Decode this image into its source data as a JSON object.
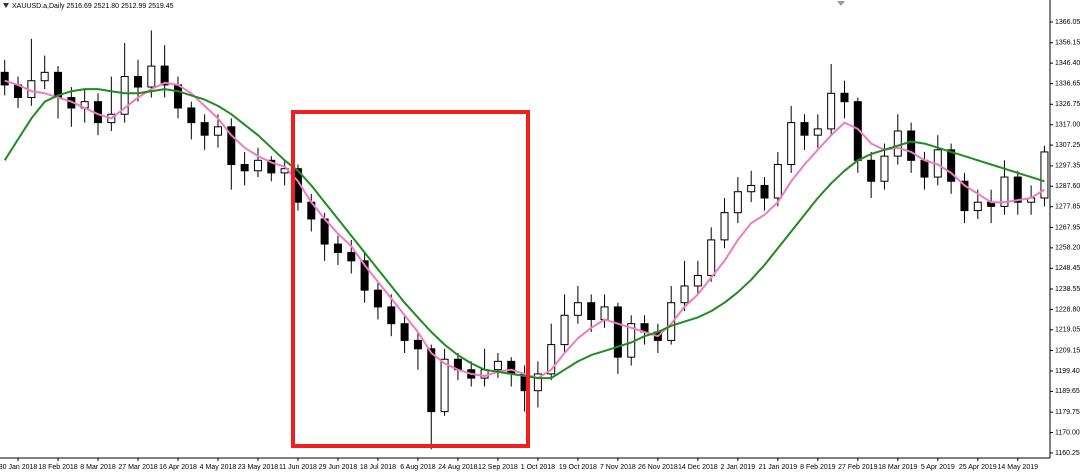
{
  "chart_data": {
    "type": "candlestick",
    "title": "XAUUSD.a,Daily  2516.69 2521.80 2512.99 2519.45",
    "categories": [
      null,
      "30 Jan 2018",
      null,
      null,
      "18 Feb 2018",
      null,
      null,
      "8 Mar 2018",
      null,
      null,
      "27 Mar 2018",
      null,
      null,
      "16 Apr 2018",
      null,
      null,
      "4 May 2018",
      null,
      null,
      "23 May 2018",
      null,
      null,
      "11 Jun 2018",
      null,
      null,
      "29 Jun 2018",
      null,
      null,
      "18 Jul 2018",
      null,
      null,
      "6 Aug 2018",
      null,
      null,
      "24 Aug 2018",
      null,
      null,
      "12 Sep 2018",
      null,
      null,
      "1 Oct 2018",
      null,
      null,
      "19 Oct 2018",
      null,
      null,
      "7 Nov 2018",
      null,
      null,
      "26 Nov 2018",
      null,
      null,
      "14 Dec 2018",
      null,
      null,
      "2 Jan 2019",
      null,
      null,
      "21 Jan 2019",
      null,
      null,
      "8 Feb 2019",
      null,
      null,
      "27 Feb 2019",
      null,
      null,
      "18 Mar 2019",
      null,
      null,
      "5 Apr 2019",
      null,
      null,
      "25 Apr 2019",
      null,
      null,
      "14 May 2019",
      null,
      null
    ],
    "open": [
      1342,
      1336,
      1330,
      1338,
      1342,
      1330,
      1325,
      1328,
      1318,
      1322,
      1340,
      1335,
      1345,
      1336,
      1325,
      1318,
      1312,
      1316,
      1298,
      1295,
      1300,
      1294,
      1296,
      1280,
      1272,
      1260,
      1256,
      1252,
      1238,
      1230,
      1222,
      1214,
      1210,
      1180,
      1205,
      1200,
      1196,
      1200,
      1204,
      1198,
      1190,
      1198,
      1212,
      1226,
      1232,
      1224,
      1230,
      1206,
      1222,
      1218,
      1214,
      1232,
      1240,
      1245,
      1262,
      1275,
      1285,
      1288,
      1282,
      1298,
      1318,
      1312,
      1315,
      1332,
      1328,
      1300,
      1290,
      1302,
      1314,
      1300,
      1292,
      1305,
      1290,
      1276,
      1280,
      1278,
      1292,
      1280,
      1282
    ],
    "high": [
      1348,
      1340,
      1358,
      1350,
      1345,
      1335,
      1334,
      1332,
      1340,
      1356,
      1348,
      1362,
      1355,
      1340,
      1328,
      1322,
      1322,
      1320,
      1304,
      1306,
      1302,
      1300,
      1298,
      1284,
      1275,
      1264,
      1262,
      1256,
      1242,
      1236,
      1226,
      1218,
      1212,
      1210,
      1208,
      1204,
      1210,
      1208,
      1206,
      1202,
      1204,
      1222,
      1236,
      1240,
      1236,
      1236,
      1232,
      1226,
      1226,
      1222,
      1240,
      1252,
      1252,
      1268,
      1282,
      1292,
      1295,
      1292,
      1304,
      1326,
      1322,
      1322,
      1346,
      1338,
      1330,
      1304,
      1308,
      1322,
      1318,
      1304,
      1312,
      1308,
      1294,
      1286,
      1286,
      1300,
      1295,
      1288,
      1307
    ],
    "low": [
      1331,
      1325,
      1326,
      1334,
      1320,
      1316,
      1318,
      1312,
      1314,
      1318,
      1328,
      1330,
      1330,
      1320,
      1310,
      1305,
      1306,
      1286,
      1288,
      1292,
      1290,
      1288,
      1276,
      1266,
      1252,
      1250,
      1246,
      1232,
      1224,
      1216,
      1208,
      1200,
      1162,
      1178,
      1195,
      1192,
      1192,
      1196,
      1192,
      1180,
      1182,
      1195,
      1208,
      1222,
      1218,
      1220,
      1198,
      1202,
      1212,
      1208,
      1212,
      1228,
      1236,
      1242,
      1258,
      1270,
      1280,
      1276,
      1278,
      1294,
      1305,
      1306,
      1312,
      1320,
      1294,
      1282,
      1286,
      1298,
      1294,
      1286,
      1288,
      1284,
      1270,
      1272,
      1270,
      1274,
      1274,
      1274,
      1278
    ],
    "close": [
      1336,
      1330,
      1338,
      1342,
      1330,
      1325,
      1328,
      1318,
      1322,
      1340,
      1335,
      1345,
      1336,
      1325,
      1318,
      1312,
      1316,
      1298,
      1295,
      1300,
      1294,
      1296,
      1280,
      1272,
      1260,
      1256,
      1252,
      1238,
      1230,
      1222,
      1214,
      1210,
      1180,
      1205,
      1200,
      1196,
      1200,
      1204,
      1198,
      1190,
      1198,
      1212,
      1226,
      1232,
      1224,
      1230,
      1206,
      1222,
      1218,
      1214,
      1232,
      1240,
      1245,
      1262,
      1275,
      1285,
      1288,
      1282,
      1298,
      1318,
      1312,
      1315,
      1332,
      1328,
      1300,
      1290,
      1302,
      1314,
      1300,
      1292,
      1305,
      1290,
      1276,
      1280,
      1278,
      1292,
      1280,
      1282,
      1304
    ],
    "candle_color": "#000000",
    "lines": [
      {
        "color": "#f07cc0",
        "values": [
          1338,
          1336,
          1333,
          1332,
          1330,
          1328,
          1325,
          1322,
          1320,
          1325,
          1330,
          1334,
          1337,
          1336,
          1332,
          1326,
          1320,
          1312,
          1306,
          1302,
          1299,
          1297,
          1290,
          1280,
          1272,
          1265,
          1259,
          1250,
          1242,
          1234,
          1226,
          1218,
          1208,
          1203,
          1200,
          1198,
          1197,
          1199,
          1200,
          1198,
          1196,
          1200,
          1208,
          1215,
          1220,
          1224,
          1222,
          1220,
          1218,
          1216,
          1222,
          1230,
          1236,
          1244,
          1252,
          1262,
          1270,
          1274,
          1280,
          1290,
          1298,
          1305,
          1312,
          1318,
          1315,
          1308,
          1305,
          1306,
          1304,
          1300,
          1298,
          1294,
          1288,
          1284,
          1280,
          1280,
          1281,
          1282,
          1286
        ]
      },
      {
        "color": "#1e8c1e",
        "values": [
          1300,
          1310,
          1320,
          1328,
          1331,
          1333,
          1334,
          1334,
          1333,
          1332,
          1332,
          1333,
          1334,
          1333,
          1331,
          1329,
          1326,
          1322,
          1317,
          1312,
          1306,
          1300,
          1295,
          1288,
          1280,
          1272,
          1264,
          1256,
          1248,
          1240,
          1232,
          1225,
          1218,
          1212,
          1207,
          1203,
          1200,
          1199,
          1198,
          1197,
          1196,
          1196,
          1200,
          1204,
          1207,
          1209,
          1211,
          1213,
          1216,
          1218,
          1221,
          1223,
          1225,
          1228,
          1232,
          1237,
          1243,
          1250,
          1258,
          1266,
          1274,
          1282,
          1289,
          1295,
          1300,
          1303,
          1305,
          1307,
          1309,
          1308,
          1306,
          1304,
          1302,
          1300,
          1298,
          1296,
          1294,
          1292,
          1290
        ]
      }
    ],
    "ylim": [
      1157.85,
      1376.55
    ],
    "yticks": [
      1366.05,
      1356.15,
      {
        "value": 1346.4,
        "label": "1346.40"
      },
      1336.65,
      1326.75,
      {
        "value": 1317,
        "label": "1317.00"
      },
      1307.25,
      1297.35,
      {
        "value": 1287.6,
        "label": "1287.60"
      },
      1277.85,
      1267.95,
      {
        "value": 1258.2,
        "label": "1258.20"
      },
      1248.45,
      1238.55,
      {
        "value": 1228.8,
        "label": "1228.80"
      },
      1219.05,
      1209.15,
      {
        "value": 1199.4,
        "label": "1199.40"
      },
      1189.65,
      1179.75,
      {
        "value": 1170,
        "label": "1170.00"
      },
      1160.25
    ]
  }
}
